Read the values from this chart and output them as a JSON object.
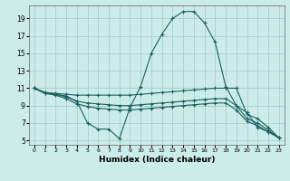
{
  "xlabel": "Humidex (Indice chaleur)",
  "bg_color": "#ccecea",
  "grid_color": "#aacfce",
  "line_color": "#1a6060",
  "xlim": [
    -0.5,
    23.5
  ],
  "ylim": [
    4.5,
    20.5
  ],
  "xticks": [
    0,
    1,
    2,
    3,
    4,
    5,
    6,
    7,
    8,
    9,
    10,
    11,
    12,
    13,
    14,
    15,
    16,
    17,
    18,
    19,
    20,
    21,
    22,
    23
  ],
  "yticks": [
    5,
    7,
    9,
    11,
    13,
    15,
    17,
    19
  ],
  "lines": [
    {
      "x": [
        0,
        1,
        2,
        3,
        4,
        5,
        6,
        7,
        8,
        9,
        10,
        11,
        12,
        13,
        14,
        15,
        16,
        17,
        18,
        19,
        20,
        21,
        22,
        23
      ],
      "y": [
        11,
        10.5,
        10.3,
        10.1,
        9.5,
        7.0,
        6.3,
        6.3,
        5.2,
        8.8,
        11.2,
        15.0,
        17.2,
        19.0,
        19.8,
        19.8,
        18.5,
        16.3,
        11.2,
        9.0,
        8.2,
        6.5,
        6.0,
        5.3
      ]
    },
    {
      "x": [
        0,
        1,
        2,
        3,
        4,
        5,
        6,
        7,
        8,
        9,
        10,
        11,
        12,
        13,
        14,
        15,
        16,
        17,
        18,
        19,
        20,
        21,
        22,
        23
      ],
      "y": [
        11,
        10.5,
        10.4,
        10.3,
        10.2,
        10.2,
        10.2,
        10.2,
        10.2,
        10.2,
        10.3,
        10.4,
        10.5,
        10.6,
        10.7,
        10.8,
        10.9,
        11.0,
        11.0,
        11.0,
        8.0,
        7.5,
        6.5,
        5.3
      ]
    },
    {
      "x": [
        0,
        1,
        2,
        3,
        4,
        5,
        6,
        7,
        8,
        9,
        10,
        11,
        12,
        13,
        14,
        15,
        16,
        17,
        18,
        19,
        20,
        21,
        22,
        23
      ],
      "y": [
        11,
        10.4,
        10.3,
        10.0,
        9.5,
        9.3,
        9.2,
        9.1,
        9.0,
        9.0,
        9.1,
        9.2,
        9.3,
        9.4,
        9.5,
        9.6,
        9.7,
        9.8,
        9.8,
        9.0,
        7.5,
        7.0,
        6.2,
        5.3
      ]
    },
    {
      "x": [
        0,
        1,
        2,
        3,
        4,
        5,
        6,
        7,
        8,
        9,
        10,
        11,
        12,
        13,
        14,
        15,
        16,
        17,
        18,
        19,
        20,
        21,
        22,
        23
      ],
      "y": [
        11,
        10.4,
        10.2,
        9.8,
        9.2,
        8.9,
        8.7,
        8.6,
        8.5,
        8.5,
        8.6,
        8.7,
        8.8,
        8.9,
        9.0,
        9.1,
        9.2,
        9.3,
        9.3,
        8.5,
        7.2,
        6.7,
        6.0,
        5.3
      ]
    }
  ]
}
